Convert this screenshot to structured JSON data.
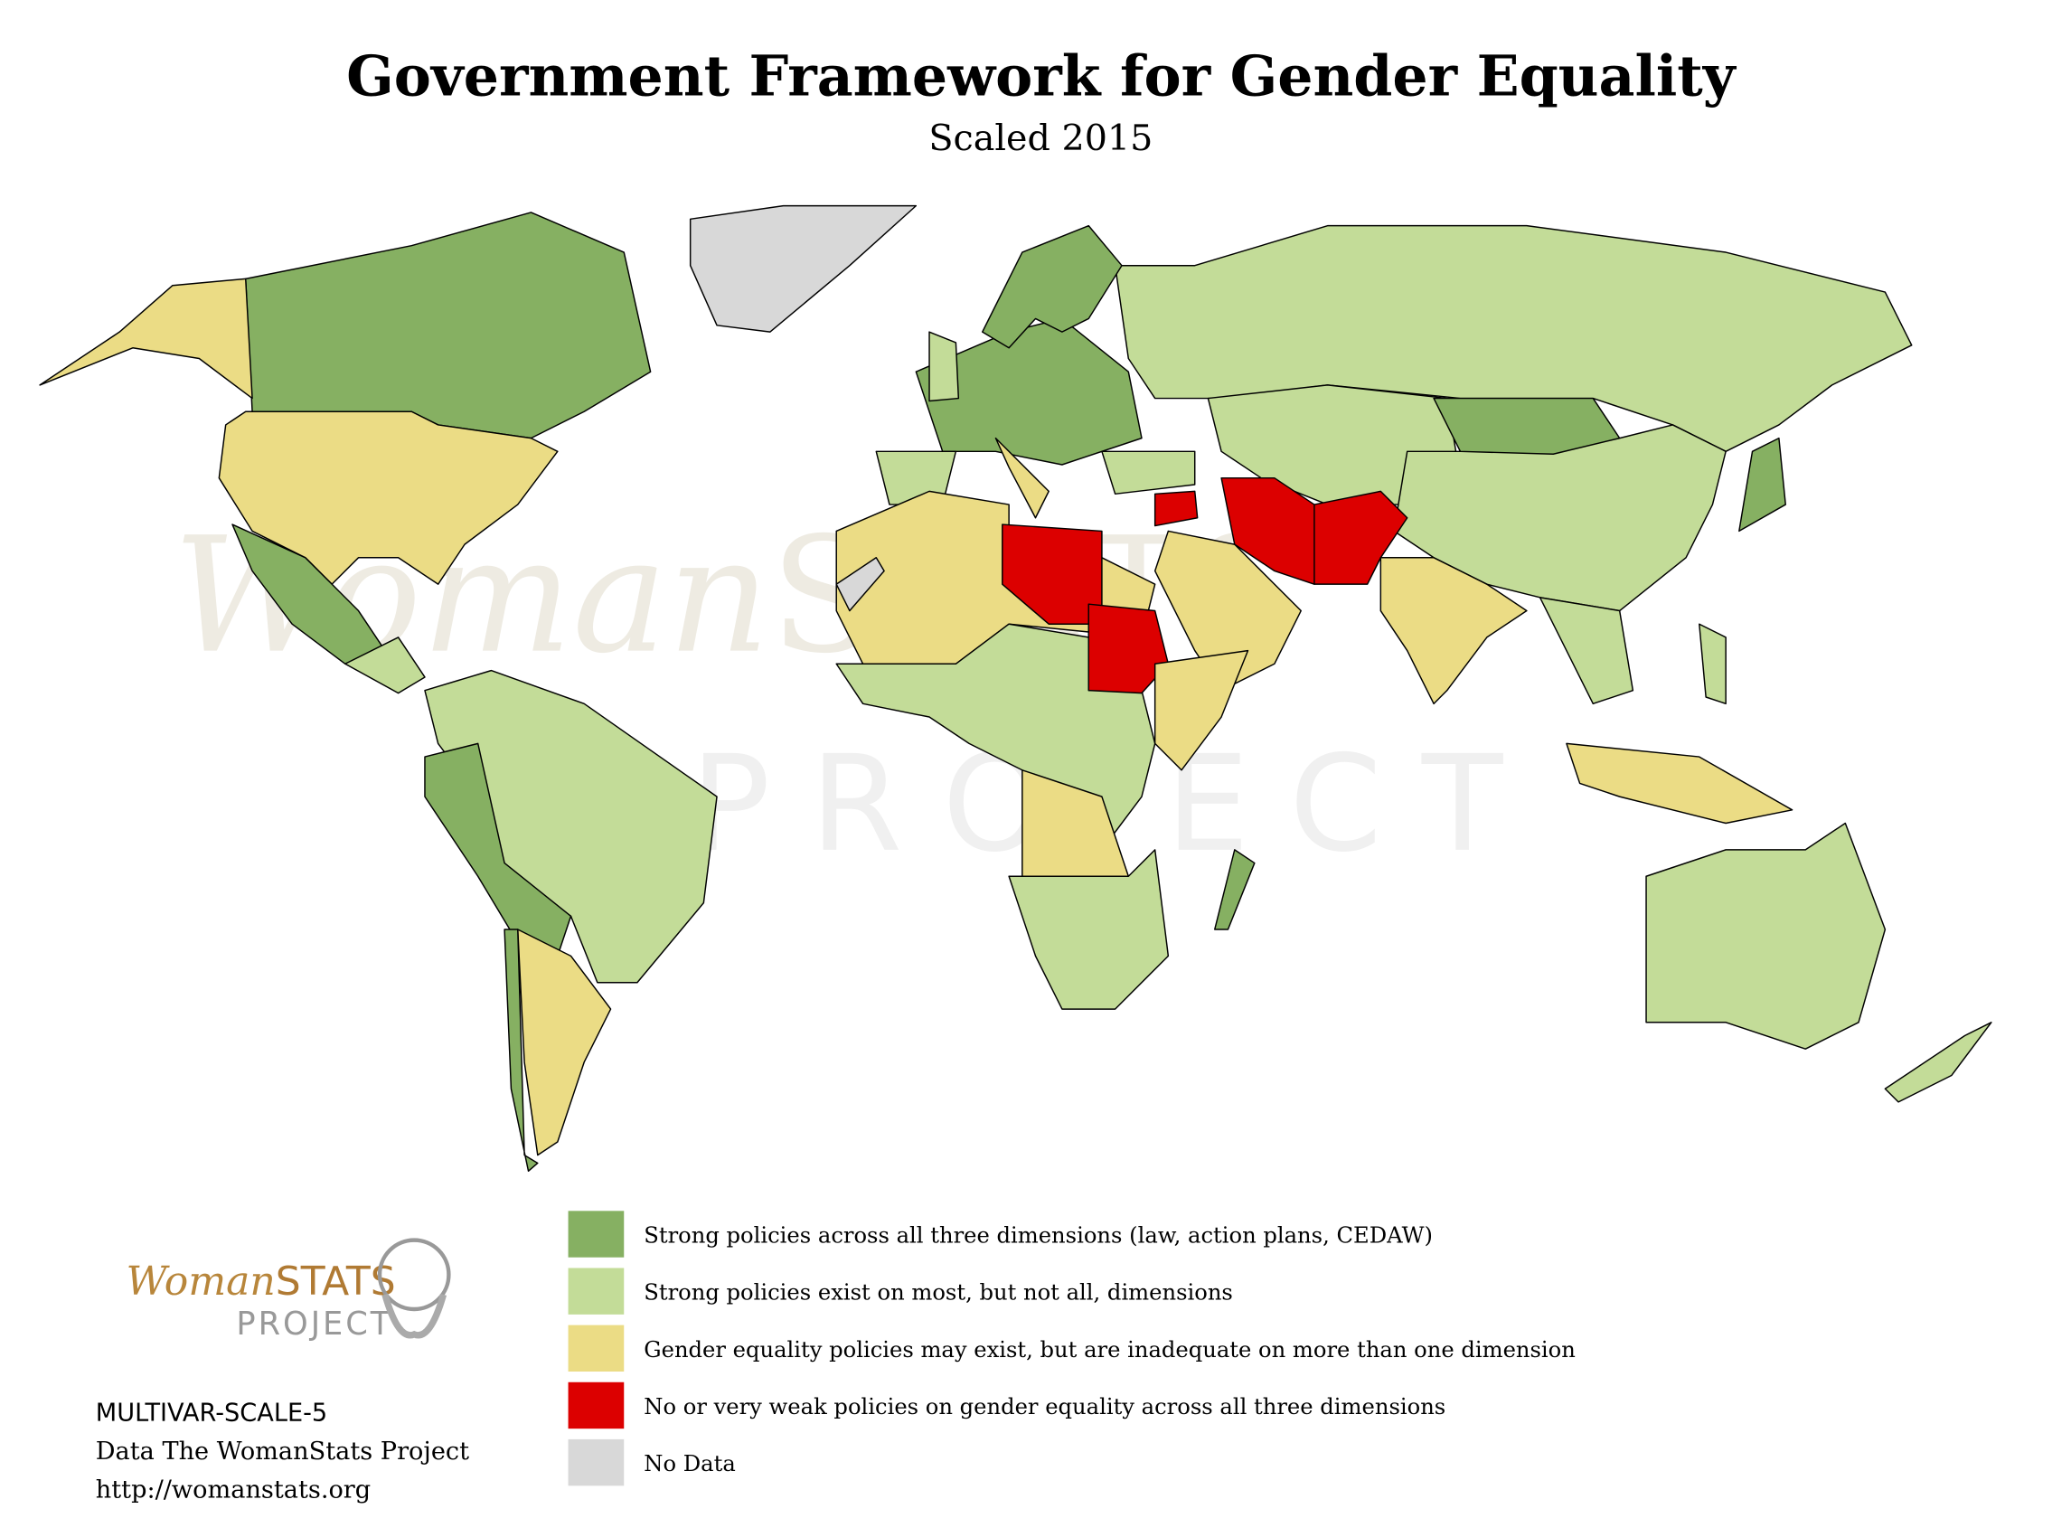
{
  "header": {
    "title": "Government Framework for Gender Equality",
    "subtitle": "Scaled 2015"
  },
  "watermark": {
    "brand_prefix": "Woman",
    "brand_suffix": "STATS",
    "line2": "PROJECT"
  },
  "legend": [
    {
      "label": "Strong policies across all three dimensions (law, action plans, CEDAW)",
      "color": "#86b062"
    },
    {
      "label": "Strong policies exist on most, but not all, dimensions",
      "color": "#c3dc98"
    },
    {
      "label": "Gender equality policies may exist, but are inadequate on more than one dimension",
      "color": "#ebdc85"
    },
    {
      "label": "No or very weak policies on gender equality across all three dimensions",
      "color": "#dc0000"
    },
    {
      "label": "No Data",
      "color": "#d8d8d8"
    }
  ],
  "logo": {
    "brand_prefix": "Woman",
    "brand_suffix": "STATS",
    "line2": "PROJECT"
  },
  "footer": [
    "MULTIVAR-SCALE-5",
    "Data The WomanStats Project",
    "http://womanstats.org"
  ]
}
